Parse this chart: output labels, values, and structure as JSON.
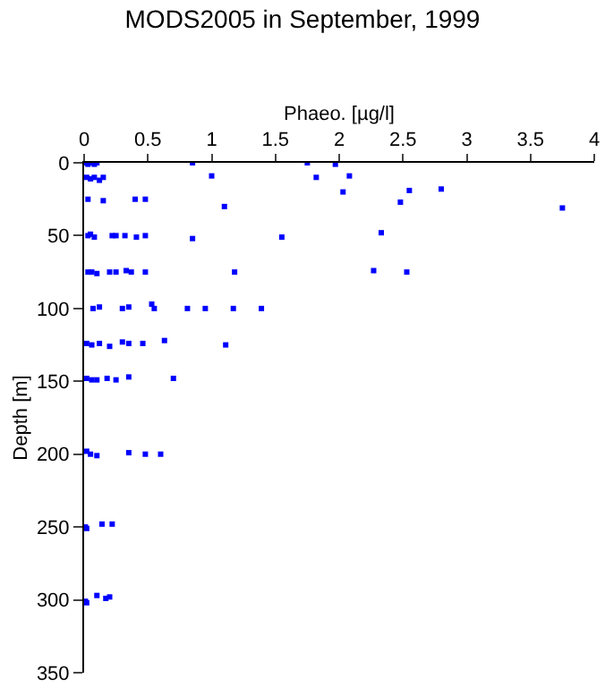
{
  "chart_data": {
    "type": "scatter",
    "title": "MODS2005 in September, 1999",
    "xlabel": "Phaeo. [µg/l]",
    "ylabel": "Depth [m]",
    "xlim": [
      0,
      4
    ],
    "xticks": [
      0,
      0.5,
      1,
      1.5,
      2,
      2.5,
      3,
      3.5,
      4
    ],
    "ylim": [
      350,
      0
    ],
    "yticks": [
      0,
      50,
      100,
      150,
      200,
      250,
      300,
      350
    ],
    "grid": false,
    "marker": "square",
    "tick_labels": "xy",
    "series": [
      {
        "color": "#0000ff",
        "x": [
          0.01,
          0.03,
          0.05,
          0.08,
          0.1,
          0.85,
          1.75,
          1.97,
          1.0,
          1.82,
          2.08,
          0.02,
          0.05,
          0.08,
          0.12,
          0.15,
          2.03,
          2.55,
          2.8,
          2.48,
          1.1,
          3.75,
          0.03,
          0.15,
          0.4,
          0.48,
          0.03,
          0.05,
          0.08,
          0.22,
          0.25,
          0.32,
          0.41,
          0.48,
          0.85,
          1.55,
          2.33,
          0.03,
          0.06,
          0.1,
          0.2,
          0.25,
          0.33,
          0.37,
          0.48,
          1.18,
          2.27,
          2.53,
          0.07,
          0.12,
          0.3,
          0.35,
          0.53,
          0.55,
          0.81,
          0.95,
          1.17,
          1.39,
          0.02,
          0.06,
          0.12,
          0.2,
          0.3,
          0.35,
          0.46,
          0.63,
          1.11,
          0.02,
          0.06,
          0.1,
          0.18,
          0.25,
          0.35,
          0.7,
          0.02,
          0.05,
          0.1,
          0.35,
          0.48,
          0.6,
          0.01,
          0.02,
          0.14,
          0.22,
          0.01,
          0.02,
          0.1,
          0.17,
          0.2
        ],
        "values": [
          0,
          1,
          0,
          1,
          0,
          0,
          0,
          1,
          9,
          10,
          9,
          10,
          11,
          10,
          12,
          10,
          20,
          19,
          18,
          27,
          30,
          31,
          25,
          26,
          25,
          25,
          50,
          49,
          51,
          50,
          50,
          50,
          51,
          50,
          52,
          51,
          48,
          75,
          75,
          76,
          75,
          75,
          74,
          75,
          75,
          75,
          74,
          75,
          100,
          99,
          100,
          99,
          97,
          100,
          100,
          100,
          100,
          100,
          124,
          125,
          124,
          126,
          123,
          124,
          124,
          122,
          125,
          148,
          149,
          149,
          148,
          149,
          147,
          148,
          198,
          200,
          201,
          199,
          200,
          200,
          250,
          251,
          248,
          248,
          301,
          302,
          297,
          299,
          298
        ]
      }
    ]
  }
}
